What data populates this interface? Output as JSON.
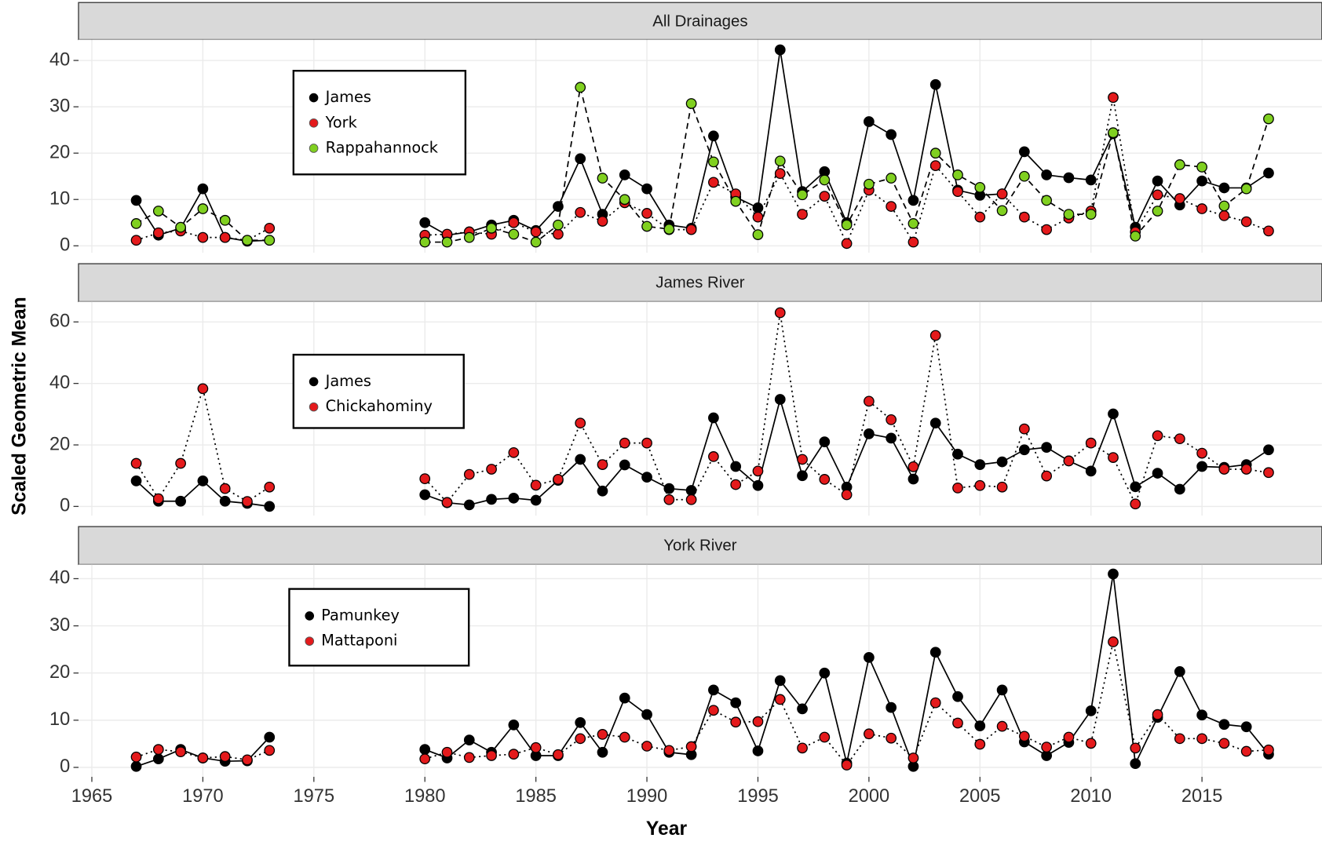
{
  "chart_data": [
    {
      "type": "line",
      "title": "All Drainages",
      "x": [
        1967,
        1968,
        1969,
        1970,
        1971,
        1972,
        1973,
        1974,
        1975,
        1976,
        1977,
        1978,
        1979,
        1980,
        1981,
        1982,
        1983,
        1984,
        1985,
        1986,
        1987,
        1988,
        1989,
        1990,
        1991,
        1992,
        1993,
        1994,
        1995,
        1996,
        1997,
        1998,
        1999,
        2000,
        2001,
        2002,
        2003,
        2004,
        2005,
        2006,
        2007,
        2008,
        2009,
        2010,
        2011,
        2012,
        2013,
        2014,
        2015,
        2016,
        2017,
        2018
      ],
      "series": [
        {
          "name": "James",
          "color": "#000000",
          "dash": "solid",
          "values": [
            9.8,
            2.3,
            3.8,
            12.3,
            1.8,
            1.0,
            1.2,
            null,
            null,
            null,
            null,
            null,
            null,
            5.0,
            2.3,
            3.0,
            4.5,
            5.5,
            3.3,
            8.5,
            18.8,
            6.8,
            15.3,
            12.3,
            4.5,
            3.8,
            23.7,
            10.5,
            8.2,
            42.3,
            11.7,
            16.0,
            5.0,
            26.8,
            24.0,
            9.8,
            34.8,
            12.0,
            10.9,
            11.2,
            20.3,
            15.3,
            14.7,
            14.2,
            24.2,
            4.0,
            14.0,
            8.8,
            14.0,
            12.5,
            12.5,
            15.7
          ]
        },
        {
          "name": "York",
          "color": "#e41a1c",
          "dash": "dotted",
          "values": [
            1.2,
            2.8,
            3.2,
            1.8,
            1.8,
            1.2,
            3.8,
            null,
            null,
            null,
            null,
            null,
            null,
            2.3,
            2.5,
            3.0,
            2.5,
            5.0,
            3.0,
            2.5,
            7.2,
            5.3,
            9.3,
            7.0,
            3.5,
            3.5,
            13.7,
            11.2,
            6.2,
            15.6,
            6.8,
            10.7,
            0.5,
            12.0,
            8.5,
            0.8,
            17.3,
            11.7,
            6.2,
            11.2,
            6.2,
            3.5,
            6.0,
            7.5,
            32.0,
            3.0,
            11.0,
            10.2,
            8.0,
            6.5,
            5.2,
            3.2
          ]
        },
        {
          "name": "Rappahannock",
          "color": "#80d020",
          "dash": "dashed",
          "values": [
            4.8,
            7.5,
            4.0,
            8.0,
            5.5,
            1.2,
            1.2,
            null,
            null,
            null,
            null,
            null,
            null,
            0.8,
            0.8,
            1.8,
            3.8,
            2.5,
            0.8,
            4.5,
            34.2,
            14.6,
            10.0,
            4.2,
            3.6,
            30.7,
            18.1,
            9.6,
            2.4,
            18.3,
            11.0,
            14.2,
            4.5,
            13.3,
            14.6,
            4.8,
            20.0,
            15.3,
            12.6,
            7.6,
            15.0,
            9.8,
            6.8,
            6.8,
            24.4,
            2.1,
            7.5,
            17.5,
            17.0,
            8.6,
            12.3,
            27.4
          ]
        }
      ],
      "xlim": [
        1964.4,
        2020.4
      ],
      "xticks": [
        1965,
        1970,
        1975,
        1980,
        1985,
        1990,
        1995,
        2000,
        2005,
        2010,
        2015
      ],
      "ylim": [
        -1.5,
        44.5
      ],
      "yticks": [
        0,
        10,
        20,
        30,
        40
      ],
      "grid": true
    },
    {
      "type": "line",
      "title": "James River",
      "ylabel": "Scaled Geometric Mean",
      "x": [
        1967,
        1968,
        1969,
        1970,
        1971,
        1972,
        1973,
        1974,
        1975,
        1976,
        1977,
        1978,
        1979,
        1980,
        1981,
        1982,
        1983,
        1984,
        1985,
        1986,
        1987,
        1988,
        1989,
        1990,
        1991,
        1992,
        1993,
        1994,
        1995,
        1996,
        1997,
        1998,
        1999,
        2000,
        2001,
        2002,
        2003,
        2004,
        2005,
        2006,
        2007,
        2008,
        2009,
        2010,
        2011,
        2012,
        2013,
        2014,
        2015,
        2016,
        2017,
        2018
      ],
      "series": [
        {
          "name": "James",
          "color": "#000000",
          "dash": "solid",
          "values": [
            8.3,
            1.7,
            1.7,
            8.3,
            1.7,
            1.0,
            0.0,
            null,
            null,
            null,
            null,
            null,
            null,
            3.8,
            1.2,
            0.5,
            2.3,
            2.7,
            2.0,
            8.5,
            15.3,
            5.0,
            13.5,
            9.5,
            5.8,
            5.2,
            28.8,
            13.0,
            6.8,
            34.8,
            10.0,
            21.0,
            6.3,
            23.6,
            22.2,
            8.9,
            27.1,
            17.0,
            13.6,
            14.5,
            18.4,
            19.2,
            14.8,
            11.5,
            30.1,
            6.4,
            10.8,
            5.6,
            13.0,
            12.7,
            13.6,
            18.4
          ]
        },
        {
          "name": "Chickahominy",
          "color": "#e41a1c",
          "dash": "dotted",
          "values": [
            14.0,
            2.5,
            14.0,
            38.3,
            5.8,
            1.6,
            6.3,
            null,
            null,
            null,
            null,
            null,
            null,
            9.0,
            1.3,
            10.4,
            12.1,
            17.5,
            6.9,
            8.8,
            27.1,
            13.6,
            20.6,
            20.6,
            2.2,
            2.2,
            16.2,
            7.1,
            11.5,
            63.0,
            15.3,
            8.8,
            3.8,
            34.2,
            28.2,
            12.9,
            55.6,
            6.0,
            6.8,
            6.3,
            25.2,
            9.9,
            14.8,
            20.6,
            15.9,
            0.8,
            23.0,
            22.0,
            17.3,
            12.1,
            12.1,
            11.0
          ]
        }
      ],
      "xlim": [
        1964.4,
        2020.4
      ],
      "xticks": [
        1965,
        1970,
        1975,
        1980,
        1985,
        1990,
        1995,
        2000,
        2005,
        2010,
        2015
      ],
      "ylim": [
        -3.0,
        66.6
      ],
      "yticks": [
        0,
        20,
        40,
        60
      ],
      "grid": true
    },
    {
      "type": "line",
      "title": "York River",
      "xlabel": "Year",
      "x": [
        1967,
        1968,
        1969,
        1970,
        1971,
        1972,
        1973,
        1974,
        1975,
        1976,
        1977,
        1978,
        1979,
        1980,
        1981,
        1982,
        1983,
        1984,
        1985,
        1986,
        1987,
        1988,
        1989,
        1990,
        1991,
        1992,
        1993,
        1994,
        1995,
        1996,
        1997,
        1998,
        1999,
        2000,
        2001,
        2002,
        2003,
        2004,
        2005,
        2006,
        2007,
        2008,
        2009,
        2010,
        2011,
        2012,
        2013,
        2014,
        2015,
        2016,
        2017,
        2018
      ],
      "series": [
        {
          "name": "Pamunkey",
          "color": "#000000",
          "dash": "solid",
          "values": [
            0.2,
            1.8,
            3.8,
            2.0,
            1.3,
            1.4,
            6.4,
            null,
            null,
            null,
            null,
            null,
            null,
            3.8,
            2.0,
            5.8,
            3.2,
            9.0,
            2.5,
            2.5,
            9.5,
            3.2,
            14.7,
            11.2,
            3.2,
            2.7,
            16.4,
            13.7,
            3.5,
            18.4,
            12.4,
            20.0,
            0.9,
            23.3,
            12.7,
            0.2,
            24.4,
            15.0,
            8.8,
            16.4,
            5.4,
            2.5,
            5.3,
            12.0,
            41.0,
            0.8,
            10.6,
            20.3,
            11.1,
            9.1,
            8.6,
            2.8
          ]
        },
        {
          "name": "Mattaponi",
          "color": "#e41a1c",
          "dash": "dotted",
          "values": [
            2.2,
            3.8,
            3.3,
            2.0,
            2.3,
            1.6,
            3.6,
            null,
            null,
            null,
            null,
            null,
            null,
            1.8,
            3.2,
            2.1,
            2.5,
            2.8,
            4.2,
            2.7,
            6.1,
            7.0,
            6.4,
            4.5,
            3.6,
            4.4,
            12.1,
            9.6,
            9.7,
            14.4,
            4.1,
            6.4,
            0.5,
            7.1,
            6.2,
            2.0,
            13.7,
            9.4,
            4.9,
            8.7,
            6.6,
            4.3,
            6.4,
            5.1,
            26.6,
            4.1,
            11.2,
            6.1,
            6.1,
            5.1,
            3.4,
            3.7
          ]
        }
      ],
      "xlim": [
        1964.4,
        2020.4
      ],
      "xticks": [
        1965,
        1970,
        1975,
        1980,
        1985,
        1990,
        1995,
        2000,
        2005,
        2010,
        2015
      ],
      "ylim": [
        -2.0,
        43.0
      ],
      "yticks": [
        0,
        10,
        20,
        30,
        40
      ],
      "grid": true
    }
  ]
}
